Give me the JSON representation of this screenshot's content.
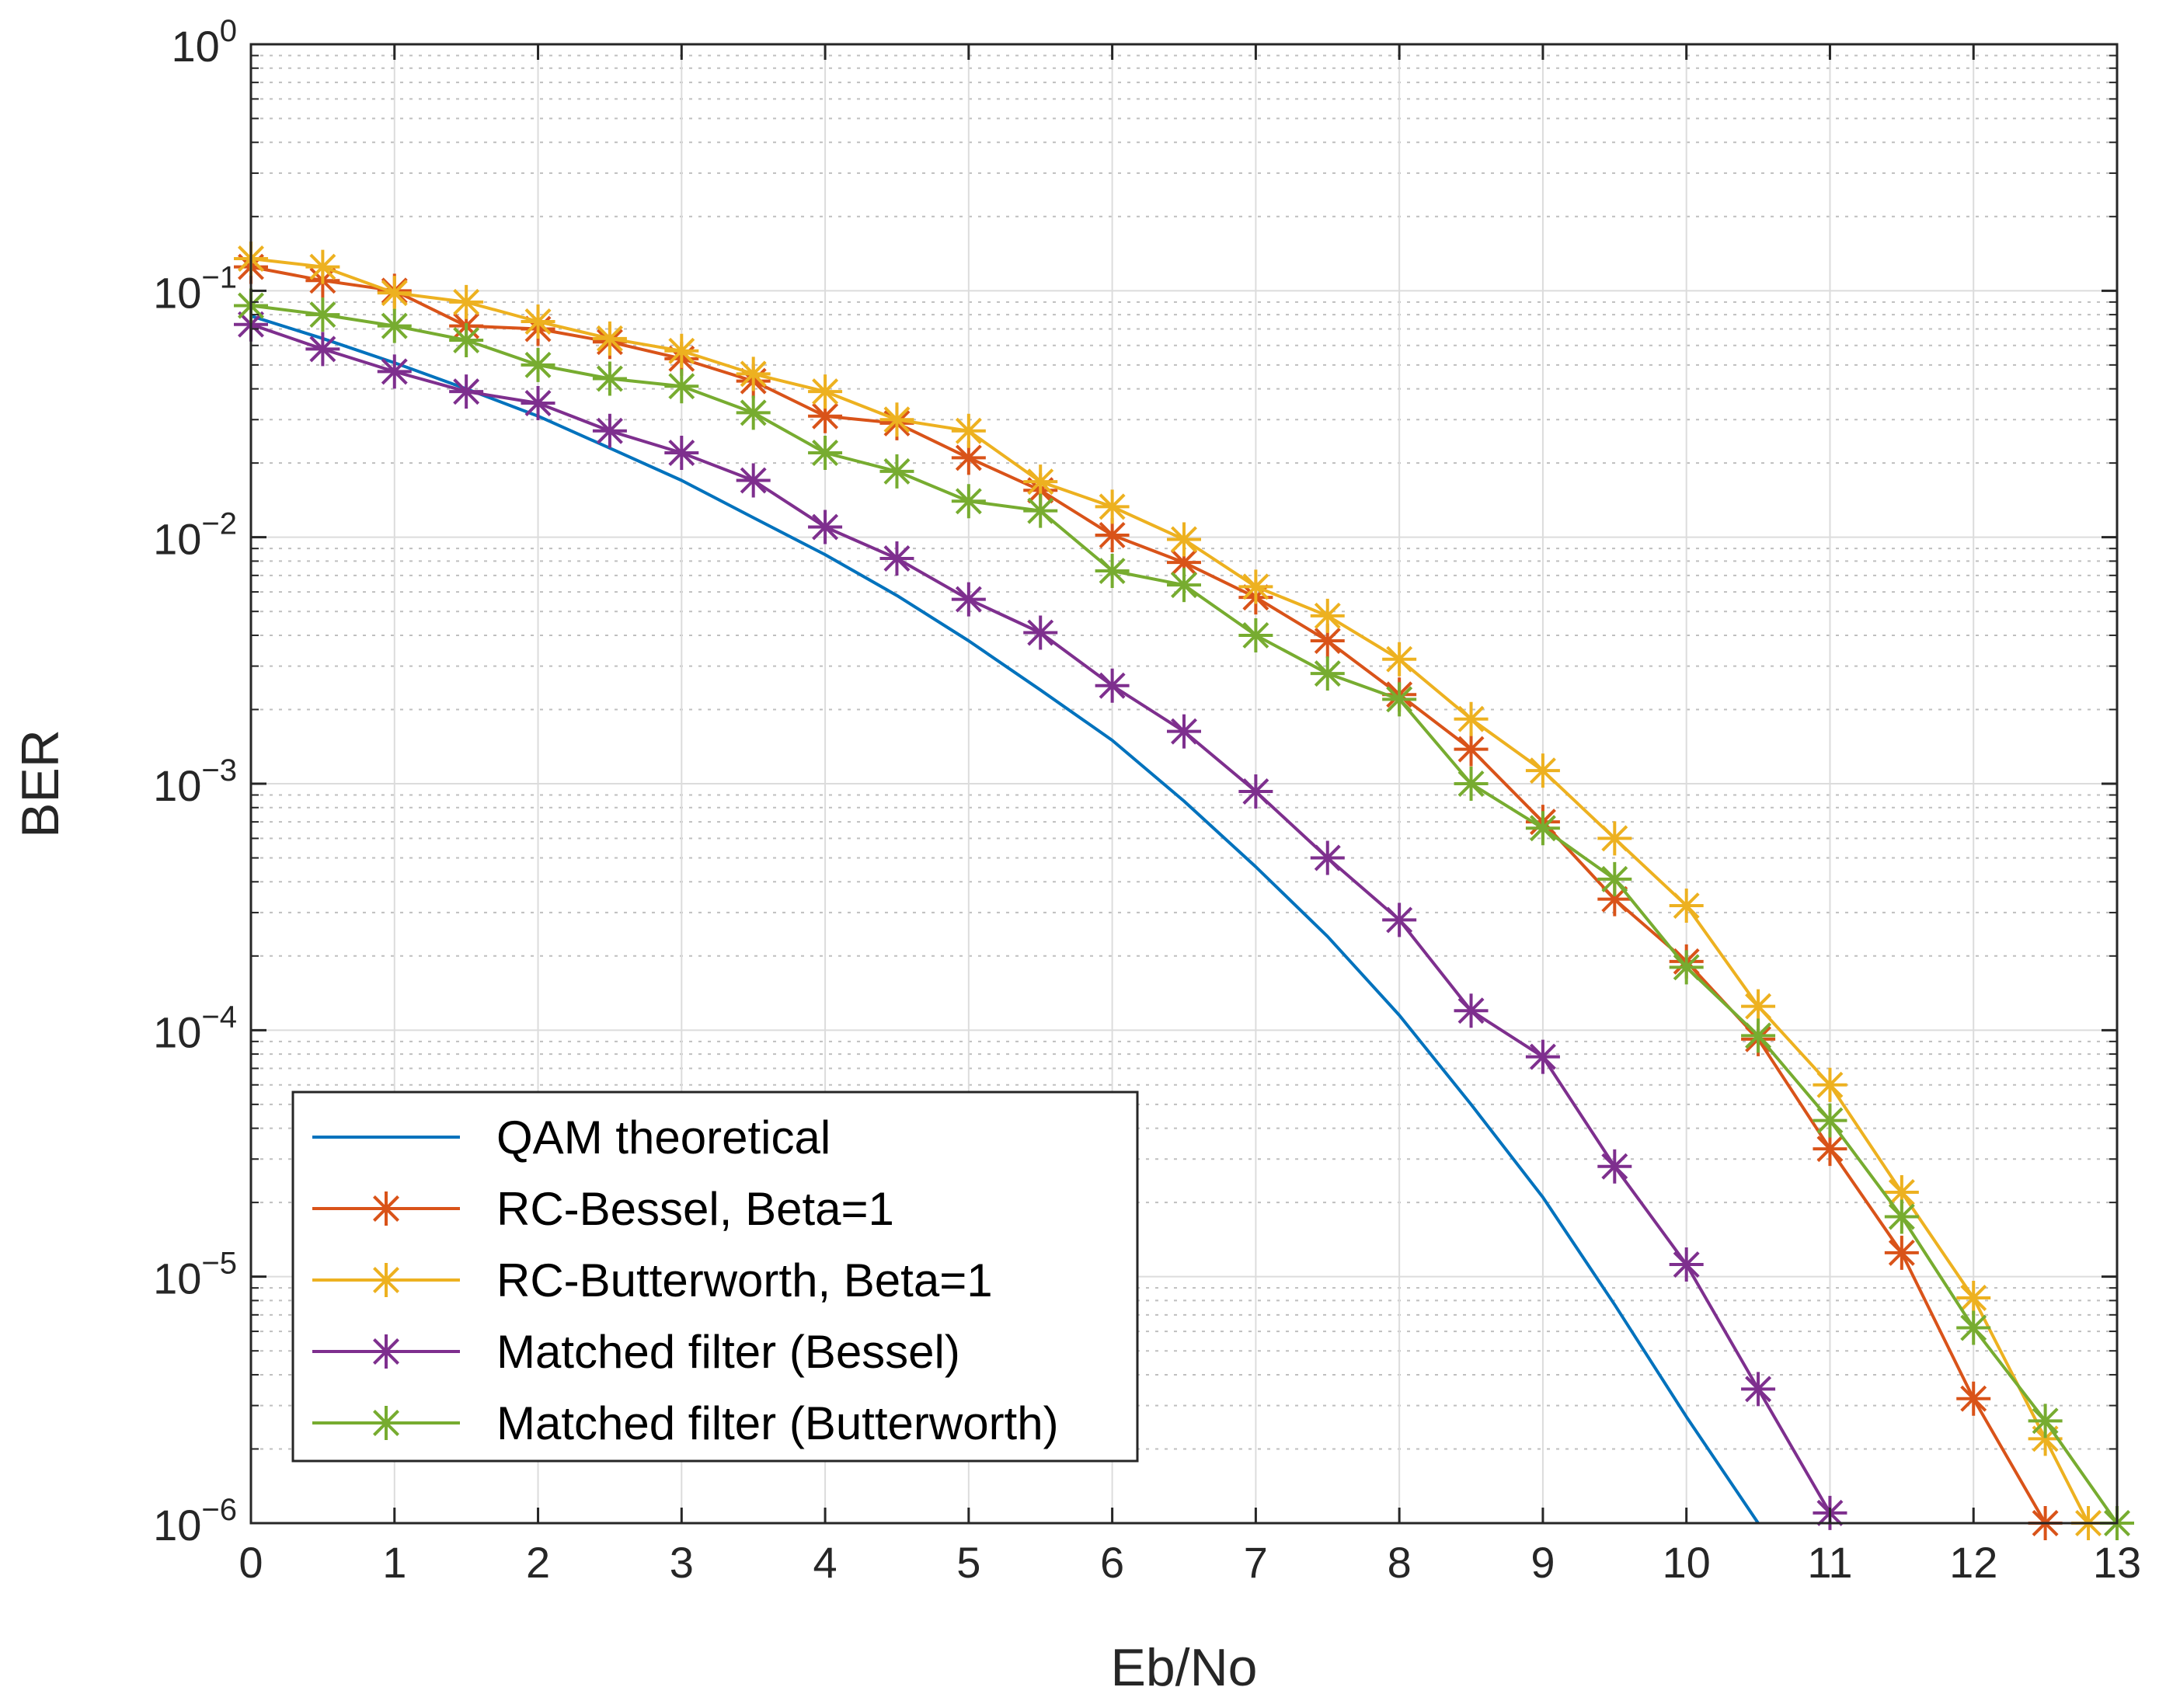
{
  "chart_data": {
    "type": "line",
    "yscale": "log",
    "xlabel": "Eb/No",
    "ylabel": "BER",
    "xlim": [
      0,
      13
    ],
    "ylim": [
      1e-06,
      1
    ],
    "x_ticks": [
      "0",
      "1",
      "2",
      "3",
      "4",
      "5",
      "6",
      "7",
      "8",
      "9",
      "10",
      "11",
      "12",
      "13"
    ],
    "y_ticks": [
      {
        "base": "10",
        "exp": "−6"
      },
      {
        "base": "10",
        "exp": "−5"
      },
      {
        "base": "10",
        "exp": "−4"
      },
      {
        "base": "10",
        "exp": "−3"
      },
      {
        "base": "10",
        "exp": "−2"
      },
      {
        "base": "10",
        "exp": "−1"
      },
      {
        "base": "10",
        "exp": "0"
      }
    ],
    "grid": true,
    "legend_position": "bottom-left",
    "series": [
      {
        "name": "QAM theoretical",
        "color": "#0072BD",
        "marker": "none",
        "x": [
          0,
          0.5,
          1,
          1.5,
          2,
          2.5,
          3,
          3.5,
          4,
          4.5,
          5,
          5.5,
          6,
          6.5,
          7,
          7.5,
          8,
          8.5,
          9,
          9.5,
          10,
          10.5
        ],
        "y": [
          0.079,
          0.064,
          0.051,
          0.04,
          0.031,
          0.023,
          0.017,
          0.012,
          0.0085,
          0.0058,
          0.0038,
          0.0024,
          0.0015,
          0.00085,
          0.00046,
          0.00024,
          0.000115,
          5e-05,
          2.1e-05,
          7.7e-06,
          2.7e-06,
          1e-06
        ]
      },
      {
        "name": "RC-Bessel, Beta=1",
        "color": "#D95319",
        "marker": "asterisk",
        "x": [
          0,
          0.5,
          1,
          1.5,
          2,
          2.5,
          3,
          3.5,
          4,
          4.5,
          5,
          5.5,
          6,
          6.5,
          7,
          7.5,
          8,
          8.5,
          9,
          9.5,
          10,
          10.5,
          11,
          11.5,
          12,
          12.5
        ],
        "y": [
          0.125,
          0.11,
          0.1,
          0.072,
          0.07,
          0.062,
          0.053,
          0.043,
          0.031,
          0.029,
          0.021,
          0.0155,
          0.0102,
          0.0079,
          0.0057,
          0.0038,
          0.0023,
          0.00138,
          0.0007,
          0.00034,
          0.00019,
          9.2e-05,
          3.3e-05,
          1.25e-05,
          3.2e-06,
          1e-06
        ]
      },
      {
        "name": "RC-Butterworth, Beta=1",
        "color": "#EDB120",
        "marker": "asterisk",
        "x": [
          0,
          0.5,
          1,
          1.5,
          2,
          2.5,
          3,
          3.5,
          4,
          4.5,
          5,
          5.5,
          6,
          6.5,
          7,
          7.5,
          8,
          8.5,
          9,
          9.5,
          10,
          10.5,
          11,
          11.5,
          12,
          12.5,
          12.8
        ],
        "y": [
          0.135,
          0.125,
          0.098,
          0.09,
          0.075,
          0.064,
          0.057,
          0.046,
          0.039,
          0.03,
          0.027,
          0.0168,
          0.0133,
          0.0098,
          0.0063,
          0.0048,
          0.0032,
          0.00183,
          0.00113,
          0.0006,
          0.00032,
          0.000125,
          6e-05,
          2.2e-05,
          8.2e-06,
          2.2e-06,
          1e-06
        ]
      },
      {
        "name": "Matched filter (Bessel)",
        "color": "#7E2F8E",
        "marker": "asterisk",
        "x": [
          0,
          0.5,
          1,
          1.5,
          2,
          2.5,
          3,
          3.5,
          4,
          4.5,
          5,
          5.5,
          6,
          6.5,
          7,
          7.5,
          8,
          8.5,
          9,
          9.5,
          10,
          10.5,
          11
        ],
        "y": [
          0.073,
          0.058,
          0.047,
          0.039,
          0.035,
          0.027,
          0.022,
          0.017,
          0.011,
          0.0082,
          0.0056,
          0.0041,
          0.0025,
          0.00163,
          0.00093,
          0.0005,
          0.00028,
          0.00012,
          7.8e-05,
          2.8e-05,
          1.12e-05,
          3.5e-06,
          1.1e-06
        ]
      },
      {
        "name": "Matched filter (Butterworth)",
        "color": "#77AC30",
        "marker": "asterisk",
        "x": [
          0,
          0.5,
          1,
          1.5,
          2,
          2.5,
          3,
          3.5,
          4,
          4.5,
          5,
          5.5,
          6,
          6.5,
          7,
          7.5,
          8,
          8.5,
          9,
          9.5,
          10,
          10.5,
          11,
          11.5,
          12,
          12.5,
          13
        ],
        "y": [
          0.087,
          0.08,
          0.072,
          0.063,
          0.05,
          0.044,
          0.041,
          0.032,
          0.022,
          0.0185,
          0.014,
          0.0128,
          0.0073,
          0.0064,
          0.004,
          0.0028,
          0.0022,
          0.001,
          0.00066,
          0.00041,
          0.00018,
          9.5e-05,
          4.3e-05,
          1.75e-05,
          6.2e-06,
          2.6e-06,
          1e-06
        ]
      }
    ]
  }
}
